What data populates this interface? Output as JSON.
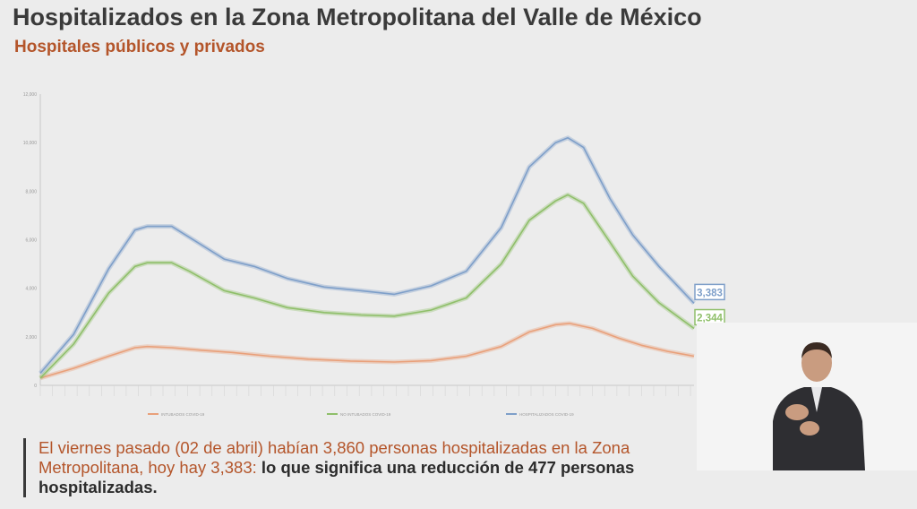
{
  "header": {
    "title": "Hospitalizados en la Zona Metropolitana del Valle de México",
    "subtitle": "Hospitales públicos y privados"
  },
  "callout": {
    "text_1": "El viernes pasado (02 de abril) habían 3,860 personas hospitalizadas en la Zona Metropolitana, hoy hay 3,383",
    "text_2": ": ",
    "text_bold": "lo que significa una reducción de 477 personas hospitalizadas."
  },
  "colors": {
    "title": "#3a3a3a",
    "subtitle": "#b4552a",
    "hospitalizados": "#7e9fc9",
    "no_intubados": "#8fbf6a",
    "intubados": "#e9a07a"
  },
  "chart_data": {
    "type": "line",
    "ylim": [
      0,
      12000
    ],
    "yticks": [
      "0",
      "2,000",
      "4,000",
      "6,000",
      "8,000",
      "10,000",
      "12,000"
    ],
    "grid": false,
    "legend_position": "bottom",
    "x_start": "2020-04-01",
    "x_end": "2021-04-09",
    "series": [
      {
        "name": "INTUBADOS COVID-19",
        "color": "#e9a07a",
        "points": [
          [
            "2020-04-01",
            300
          ],
          [
            "2020-04-20",
            700
          ],
          [
            "2020-05-10",
            1200
          ],
          [
            "2020-05-25",
            1550
          ],
          [
            "2020-06-01",
            1600
          ],
          [
            "2020-06-15",
            1550
          ],
          [
            "2020-07-01",
            1450
          ],
          [
            "2020-07-20",
            1350
          ],
          [
            "2020-08-10",
            1200
          ],
          [
            "2020-09-01",
            1080
          ],
          [
            "2020-09-25",
            1000
          ],
          [
            "2020-10-20",
            960
          ],
          [
            "2020-11-10",
            1020
          ],
          [
            "2020-11-30",
            1200
          ],
          [
            "2020-12-20",
            1600
          ],
          [
            "2021-01-05",
            2200
          ],
          [
            "2021-01-20",
            2500
          ],
          [
            "2021-01-28",
            2550
          ],
          [
            "2021-02-10",
            2350
          ],
          [
            "2021-02-25",
            1950
          ],
          [
            "2021-03-10",
            1650
          ],
          [
            "2021-03-25",
            1400
          ],
          [
            "2021-04-09",
            1200
          ]
        ]
      },
      {
        "name": "NO INTUBADOS COVID-19",
        "color": "#8fbf6a",
        "points": [
          [
            "2020-04-01",
            300
          ],
          [
            "2020-04-20",
            1700
          ],
          [
            "2020-05-10",
            3800
          ],
          [
            "2020-05-25",
            4900
          ],
          [
            "2020-06-01",
            5050
          ],
          [
            "2020-06-15",
            5050
          ],
          [
            "2020-06-25",
            4700
          ],
          [
            "2020-07-15",
            3900
          ],
          [
            "2020-08-01",
            3600
          ],
          [
            "2020-08-20",
            3200
          ],
          [
            "2020-09-10",
            3000
          ],
          [
            "2020-10-01",
            2900
          ],
          [
            "2020-10-20",
            2850
          ],
          [
            "2020-11-10",
            3100
          ],
          [
            "2020-11-30",
            3600
          ],
          [
            "2020-12-20",
            5000
          ],
          [
            "2021-01-05",
            6800
          ],
          [
            "2021-01-20",
            7600
          ],
          [
            "2021-01-27",
            7850
          ],
          [
            "2021-02-05",
            7500
          ],
          [
            "2021-02-20",
            5900
          ],
          [
            "2021-03-05",
            4500
          ],
          [
            "2021-03-20",
            3400
          ],
          [
            "2021-04-09",
            2344
          ]
        ]
      },
      {
        "name": "HOSPITALIZADOS COVID-19",
        "color": "#7e9fc9",
        "points": [
          [
            "2020-04-01",
            500
          ],
          [
            "2020-04-20",
            2100
          ],
          [
            "2020-05-10",
            4800
          ],
          [
            "2020-05-25",
            6400
          ],
          [
            "2020-06-01",
            6550
          ],
          [
            "2020-06-15",
            6550
          ],
          [
            "2020-06-25",
            6100
          ],
          [
            "2020-07-15",
            5200
          ],
          [
            "2020-08-01",
            4900
          ],
          [
            "2020-08-20",
            4400
          ],
          [
            "2020-09-10",
            4050
          ],
          [
            "2020-10-01",
            3900
          ],
          [
            "2020-10-20",
            3750
          ],
          [
            "2020-11-10",
            4100
          ],
          [
            "2020-11-30",
            4700
          ],
          [
            "2020-12-20",
            6500
          ],
          [
            "2021-01-05",
            9000
          ],
          [
            "2021-01-20",
            10000
          ],
          [
            "2021-01-27",
            10200
          ],
          [
            "2021-02-05",
            9800
          ],
          [
            "2021-02-20",
            7700
          ],
          [
            "2021-03-05",
            6200
          ],
          [
            "2021-03-20",
            4900
          ],
          [
            "2021-04-09",
            3383
          ]
        ]
      }
    ],
    "end_labels": [
      {
        "series": "HOSPITALIZADOS COVID-19",
        "text": "3,383"
      },
      {
        "series": "NO INTUBADOS COVID-19",
        "text": "2,344"
      }
    ]
  }
}
